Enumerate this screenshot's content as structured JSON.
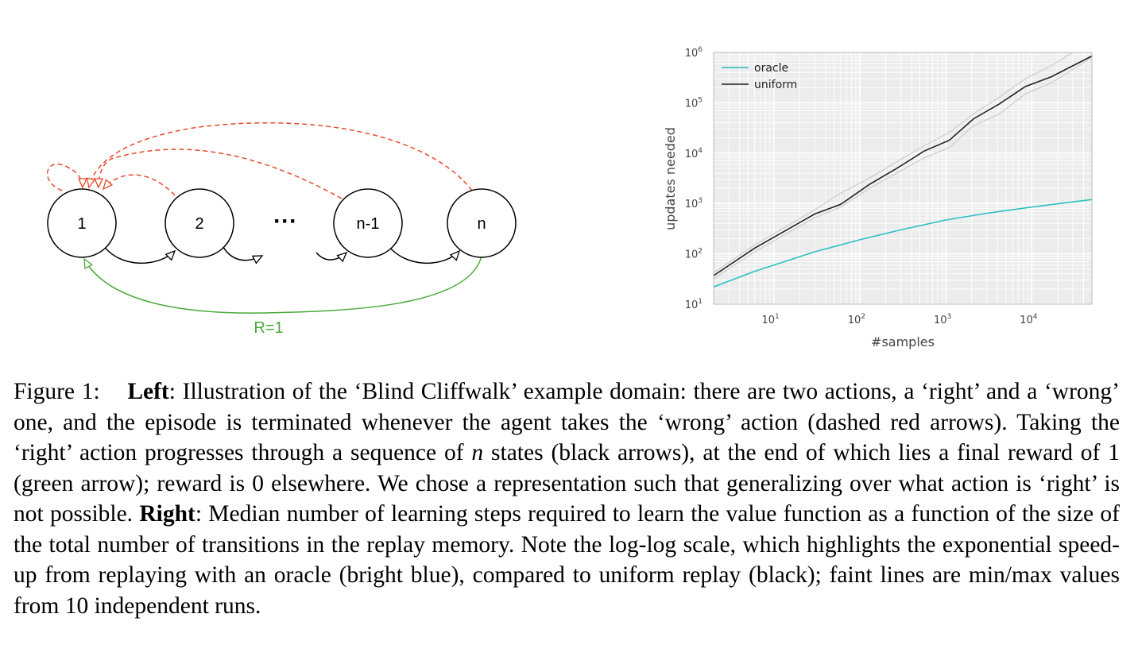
{
  "diagram": {
    "nodes": [
      "1",
      "2",
      "n-1",
      "n"
    ],
    "ellipsis": "···",
    "reward_label": "R=1",
    "colors": {
      "right_arrow": "#000000",
      "wrong_arrow": "#e8482a",
      "reward_arrow": "#4aa83a"
    }
  },
  "chart_data": {
    "type": "line",
    "xlabel": "#samples",
    "ylabel": "updates needed",
    "x_scale": "log",
    "y_scale": "log",
    "xlim": [
      2,
      50000
    ],
    "ylim": [
      10,
      1000000
    ],
    "grid": true,
    "legend_position": "top-left",
    "x_ticks": [
      {
        "base": "10",
        "exp": "1"
      },
      {
        "base": "10",
        "exp": "2"
      },
      {
        "base": "10",
        "exp": "3"
      },
      {
        "base": "10",
        "exp": "4"
      }
    ],
    "y_ticks": [
      {
        "base": "10",
        "exp": "1"
      },
      {
        "base": "10",
        "exp": "2"
      },
      {
        "base": "10",
        "exp": "3"
      },
      {
        "base": "10",
        "exp": "4"
      },
      {
        "base": "10",
        "exp": "5"
      },
      {
        "base": "10",
        "exp": "6"
      }
    ],
    "series": [
      {
        "name": "oracle",
        "color": "#2bbfc4",
        "x": [
          2,
          6,
          30,
          100,
          300,
          1000,
          3000,
          10000,
          50000
        ],
        "y": [
          22,
          45,
          110,
          190,
          300,
          470,
          640,
          850,
          1200
        ]
      },
      {
        "name": "uniform",
        "color": "#222222",
        "x": [
          2,
          6,
          30,
          60,
          130,
          260,
          560,
          1100,
          2100,
          4200,
          8400,
          17000,
          50000
        ],
        "y": [
          37,
          130,
          620,
          960,
          2400,
          4800,
          11000,
          18000,
          48000,
          95000,
          210000,
          330000,
          850000
        ]
      },
      {
        "name": "",
        "color": "#cccccc",
        "x": [
          2,
          6,
          30,
          60,
          130,
          260,
          560,
          1100,
          2100,
          4200,
          8400,
          17000,
          30000
        ],
        "y": [
          42,
          150,
          750,
          1600,
          3200,
          6500,
          14000,
          26000,
          60000,
          130000,
          300000,
          550000,
          1000000
        ]
      },
      {
        "name": "",
        "color": "#cccccc",
        "x": [
          2,
          6,
          30,
          60,
          130,
          260,
          560,
          1100,
          2100,
          4200,
          8400,
          17000,
          50000
        ],
        "y": [
          32,
          110,
          520,
          850,
          2000,
          3900,
          8000,
          13000,
          35000,
          60000,
          150000,
          250000,
          800000
        ]
      }
    ]
  },
  "caption": {
    "figure_label": "Figure 1:",
    "left_label": "Left",
    "left_text": ": Illustration of the ‘Blind Cliffwalk’ example domain: there are two actions, a ‘right’ and a ‘wrong’ one, and the episode is terminated whenever the agent takes the ‘wrong’ action (dashed red arrows). Taking the ‘right’ action progresses through a sequence of ",
    "n_var": "n",
    "left_text_2": " states (black arrows), at the end of which lies a final reward of 1 (green arrow); reward is 0 elsewhere. We chose a representation such that generalizing over what action is ‘right’ is not possible. ",
    "right_label": "Right",
    "right_text": ": Median number of learning steps required to learn the value function as a function of the size of the total number of transitions in the replay memory. Note the log-log scale, which highlights the exponential speed-up from replaying with an oracle (bright blue), compared to uniform replay (black); faint lines are min/max values from 10 independent runs."
  }
}
